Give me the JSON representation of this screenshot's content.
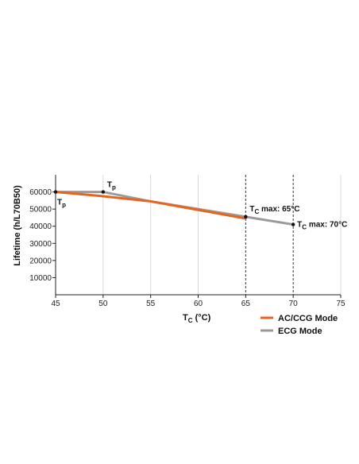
{
  "chart_data": {
    "type": "line",
    "xlabel": {
      "main": "T",
      "sub": "C",
      "rest": " (°C)"
    },
    "ylabel": "Lifetime (h/L70B50)",
    "xlim": [
      45,
      75
    ],
    "ylim": [
      0,
      70000
    ],
    "x_ticks": [
      45,
      50,
      55,
      60,
      65,
      70,
      75
    ],
    "y_ticks": [
      10000,
      20000,
      30000,
      40000,
      50000,
      60000
    ],
    "grid": "vertical",
    "legend_position": "bottom-right",
    "series": [
      {
        "name": "AC/CCG Mode",
        "color": "#e8641e",
        "x": [
          45,
          50,
          55,
          60,
          65
        ],
        "y": [
          60000,
          57500,
          54500,
          49500,
          44500
        ]
      },
      {
        "name": "ECG Mode",
        "color": "#9a9a9a",
        "x": [
          45,
          50,
          55,
          60,
          65,
          70
        ],
        "y": [
          60000,
          60000,
          54500,
          50000,
          45500,
          41000
        ]
      }
    ],
    "points": [
      {
        "x": 45,
        "y": 60000
      },
      {
        "x": 50,
        "y": 60000
      },
      {
        "x": 65,
        "y": 45500
      },
      {
        "x": 70,
        "y": 41000
      }
    ],
    "vlines": [
      65,
      70
    ],
    "annotations": [
      {
        "main": "T",
        "sub": "p",
        "rest": "",
        "x": 45,
        "y": 60000,
        "place": "below"
      },
      {
        "main": "T",
        "sub": "p",
        "rest": "",
        "x": 50,
        "y": 60000,
        "place": "above"
      },
      {
        "main": "T",
        "sub": "C",
        "rest": " max: 65°C",
        "x": 65,
        "y": 45500,
        "place": "above-right"
      },
      {
        "main": "T",
        "sub": "C",
        "rest": " max: 70°C",
        "x": 70,
        "y": 41000,
        "place": "right"
      }
    ]
  }
}
